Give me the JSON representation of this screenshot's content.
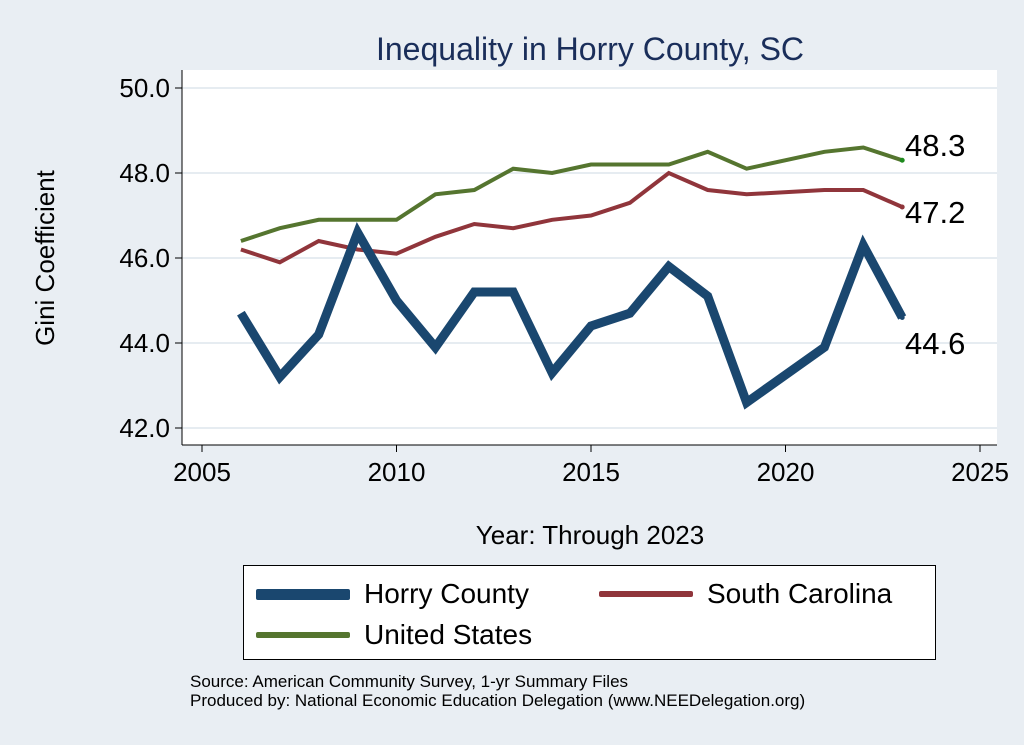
{
  "chart_data": {
    "type": "line",
    "title": "Inequality in Horry County, SC",
    "xlabel": "Year: Through 2023",
    "ylabel": "Gini Coefficient",
    "xlim": [
      2005,
      2025
    ],
    "ylim": [
      42.0,
      50.0
    ],
    "x_ticks": [
      2005,
      2010,
      2015,
      2020,
      2025
    ],
    "x_tick_labels": [
      "2005",
      "2010",
      "2015",
      "2020",
      "2025"
    ],
    "y_ticks": [
      42.0,
      44.0,
      46.0,
      48.0,
      50.0
    ],
    "y_tick_labels": [
      "42.0",
      "44.0",
      "46.0",
      "48.0",
      "50.0"
    ],
    "grid": true,
    "legend_position": "bottom",
    "x": [
      2006,
      2007,
      2008,
      2009,
      2010,
      2011,
      2012,
      2013,
      2014,
      2015,
      2016,
      2017,
      2018,
      2019,
      2021,
      2022,
      2023
    ],
    "series": [
      {
        "name": "Horry County",
        "color": "#1a476f",
        "values": [
          44.7,
          43.2,
          44.2,
          46.6,
          45.0,
          43.9,
          45.2,
          45.2,
          43.3,
          44.4,
          44.7,
          45.8,
          45.1,
          42.6,
          43.9,
          46.3,
          44.6
        ],
        "end_label": "44.6"
      },
      {
        "name": "South Carolina",
        "color": "#90353b",
        "values": [
          46.2,
          45.9,
          46.4,
          46.2,
          46.1,
          46.5,
          46.8,
          46.7,
          46.9,
          47.0,
          47.3,
          48.0,
          47.6,
          47.5,
          47.6,
          47.6,
          47.2
        ],
        "end_label": "47.2"
      },
      {
        "name": "United States",
        "color": "#55752f",
        "values": [
          46.4,
          46.7,
          46.9,
          46.9,
          46.9,
          47.5,
          47.6,
          48.1,
          48.0,
          48.2,
          48.2,
          48.2,
          48.5,
          48.1,
          48.5,
          48.6,
          48.3
        ],
        "end_label": "48.3"
      }
    ]
  },
  "legend": {
    "items": [
      "Horry County",
      "South Carolina",
      "United States"
    ]
  },
  "source": {
    "line1": "Source: American Community Survey, 1-yr Summary Files",
    "line2": "Produced by: National Economic Education Delegation (www.NEEDelegation.org)"
  }
}
